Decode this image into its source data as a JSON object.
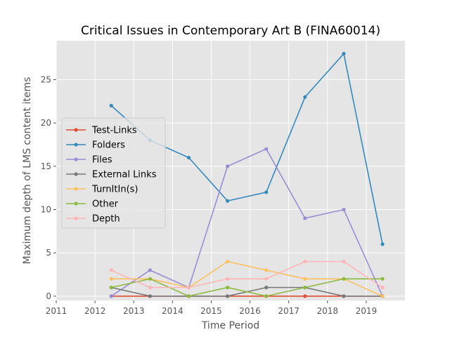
{
  "chart_data": {
    "type": "line",
    "title": "Critical Issues in Contemporary Art B (FINA60014)",
    "xlabel": "Time Period",
    "ylabel": "Maximum depth of LMS content items",
    "xlim": [
      2011,
      2020
    ],
    "ylim": [
      -0.5,
      29.5
    ],
    "xticks": [
      2011,
      2012,
      2013,
      2014,
      2015,
      2016,
      2017,
      2018,
      2019
    ],
    "yticks": [
      0,
      5,
      10,
      15,
      20,
      25
    ],
    "grid": true,
    "legend_position": "center-left",
    "x": [
      2012.42,
      2013.42,
      2014.42,
      2015.42,
      2016.42,
      2017.42,
      2018.42,
      2019.42
    ],
    "series": [
      {
        "name": "Test-Links",
        "color": "#E24A33",
        "values": [
          0,
          0,
          0,
          0,
          0,
          0,
          0,
          0
        ]
      },
      {
        "name": "Folders",
        "color": "#348ABD",
        "values": [
          22,
          18,
          16,
          11,
          12,
          23,
          28,
          6
        ]
      },
      {
        "name": "Files",
        "color": "#988ED5",
        "values": [
          0,
          3,
          1,
          15,
          17,
          9,
          10,
          0
        ]
      },
      {
        "name": "External Links",
        "color": "#777777",
        "values": [
          1,
          0,
          0,
          0,
          1,
          1,
          0,
          0
        ]
      },
      {
        "name": "TurnItIn(s)",
        "color": "#FBC15E",
        "values": [
          2,
          2,
          1,
          4,
          3,
          2,
          2,
          0
        ]
      },
      {
        "name": "Other",
        "color": "#8EBA42",
        "values": [
          1,
          2,
          0,
          1,
          0,
          1,
          2,
          2
        ]
      },
      {
        "name": "Depth",
        "color": "#FFB5B8",
        "values": [
          3,
          1,
          1,
          2,
          2,
          4,
          4,
          1
        ]
      }
    ]
  }
}
